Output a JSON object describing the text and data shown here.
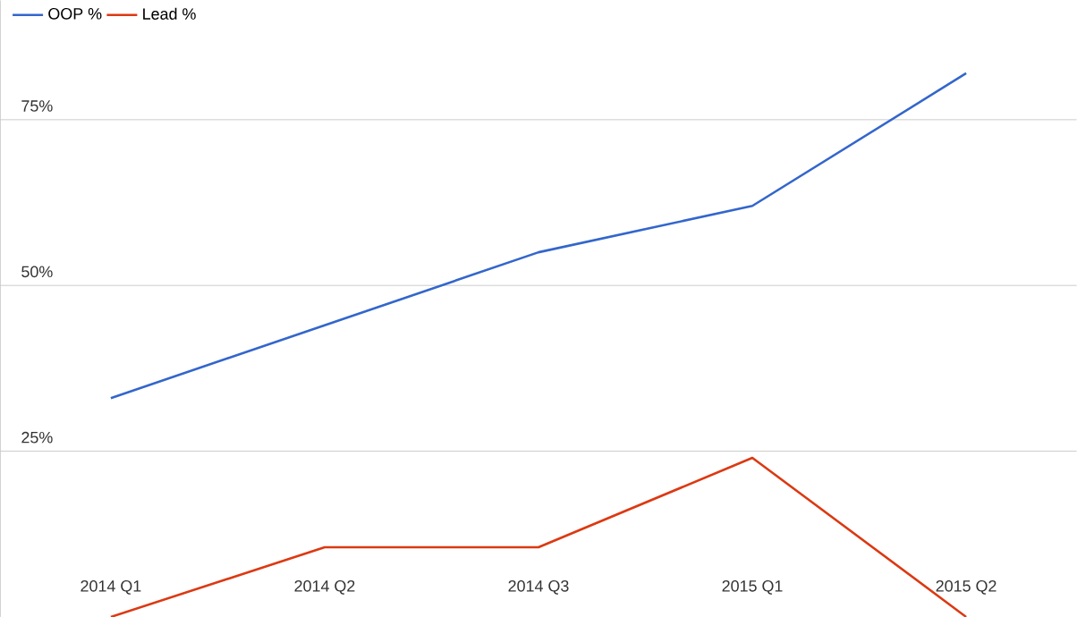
{
  "chart_data": {
    "type": "line",
    "categories": [
      "2014 Q1",
      "2014 Q2",
      "2014 Q3",
      "2015 Q1",
      "2015 Q2"
    ],
    "series": [
      {
        "name": "OOP %",
        "color": "#3366cc",
        "values": [
          33,
          44,
          55,
          62,
          82
        ]
      },
      {
        "name": "Lead %",
        "color": "#dc3912",
        "values": [
          0,
          10.5,
          10.5,
          24,
          0
        ]
      }
    ],
    "ylim": [
      0,
      93
    ],
    "yticks": [
      {
        "value": 25,
        "label": "25%"
      },
      {
        "value": 50,
        "label": "50%"
      },
      {
        "value": 75,
        "label": "75%"
      }
    ],
    "grid": "y",
    "legend": "top left"
  }
}
